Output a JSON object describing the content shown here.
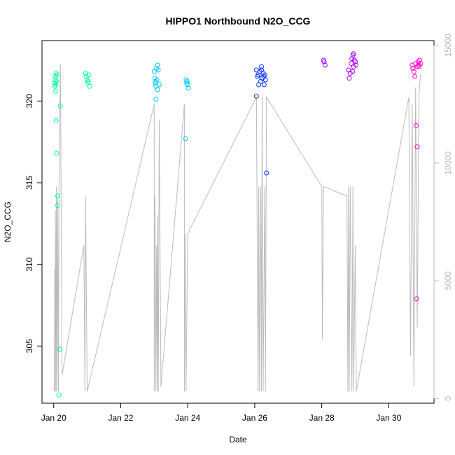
{
  "chart_data": {
    "type": "scatter",
    "title": "HIPPO1 Northbound N2O_CCG",
    "xlabel": "Date",
    "ylabel": "N2O_CCG",
    "x_unit": "day of January (x = 20 means Jan 20 00:00)",
    "xlim": [
      19.65,
      31.35
    ],
    "ylim": [
      301.5,
      323.7
    ],
    "y2lim": [
      -200,
      15200
    ],
    "x_ticks": [
      {
        "value": 20,
        "label": "Jan 20"
      },
      {
        "value": 22,
        "label": "Jan 22"
      },
      {
        "value": 24,
        "label": "Jan 24"
      },
      {
        "value": 26,
        "label": "Jan 26"
      },
      {
        "value": 28,
        "label": "Jan 28"
      },
      {
        "value": 30,
        "label": "Jan 30"
      }
    ],
    "y_ticks": [
      {
        "value": 305,
        "label": "305"
      },
      {
        "value": 310,
        "label": "310"
      },
      {
        "value": 315,
        "label": "315"
      },
      {
        "value": 320,
        "label": "320"
      }
    ],
    "y2_ticks": [
      {
        "value": 0,
        "label": "0"
      },
      {
        "value": 5000,
        "label": "5000"
      },
      {
        "value": 10000,
        "label": "10000"
      },
      {
        "value": 15000,
        "label": "15000"
      }
    ],
    "grid": false,
    "legend": "none",
    "series": [
      {
        "color": "#00ff99",
        "points": [
          [
            20.03,
            321.1
          ],
          [
            20.05,
            321.5
          ],
          [
            20.07,
            321.7
          ],
          [
            20.04,
            321.3
          ],
          [
            20.06,
            321.0
          ],
          [
            20.08,
            321.2
          ],
          [
            20.03,
            320.9
          ],
          [
            20.1,
            321.6
          ],
          [
            20.06,
            320.6
          ],
          [
            20.07,
            318.8
          ],
          [
            20.09,
            316.8
          ],
          [
            20.12,
            314.2
          ],
          [
            20.11,
            313.6
          ],
          [
            20.2,
            319.7
          ],
          [
            20.18,
            304.8
          ],
          [
            20.15,
            302.0
          ],
          [
            20.95,
            321.7
          ],
          [
            20.97,
            321.5
          ],
          [
            21.0,
            321.3
          ],
          [
            21.02,
            321.1
          ],
          [
            21.05,
            321.6
          ],
          [
            21.03,
            321.2
          ],
          [
            21.07,
            320.9
          ]
        ]
      },
      {
        "color": "#00c8ff",
        "points": [
          [
            23.0,
            321.8
          ],
          [
            23.02,
            321.4
          ],
          [
            23.04,
            321.1
          ],
          [
            23.05,
            320.9
          ],
          [
            23.07,
            322.0
          ],
          [
            23.1,
            322.2
          ],
          [
            23.12,
            321.9
          ],
          [
            23.08,
            321.3
          ],
          [
            23.03,
            321.2
          ],
          [
            23.15,
            321.0
          ],
          [
            23.05,
            320.1
          ],
          [
            23.1,
            320.7
          ],
          [
            23.95,
            321.3
          ],
          [
            23.97,
            321.1
          ],
          [
            24.0,
            321.0
          ],
          [
            23.98,
            321.2
          ],
          [
            24.02,
            320.8
          ],
          [
            23.93,
            317.7
          ]
        ]
      },
      {
        "color": "#0033ff",
        "points": [
          [
            26.05,
            321.9
          ],
          [
            26.1,
            321.6
          ],
          [
            26.15,
            321.8
          ],
          [
            26.2,
            322.1
          ],
          [
            26.22,
            321.4
          ],
          [
            26.25,
            321.7
          ],
          [
            26.18,
            321.2
          ],
          [
            26.12,
            321.0
          ],
          [
            26.08,
            321.5
          ],
          [
            26.3,
            321.6
          ],
          [
            26.32,
            321.3
          ],
          [
            26.28,
            321.0
          ],
          [
            26.05,
            320.3
          ],
          [
            26.35,
            315.6
          ],
          [
            26.2,
            321.9
          ],
          [
            26.27,
            321.5
          ]
        ]
      },
      {
        "color": "#aa00ff",
        "points": [
          [
            28.05,
            322.5
          ],
          [
            28.07,
            322.4
          ],
          [
            28.1,
            322.2
          ],
          [
            28.8,
            321.9
          ],
          [
            28.85,
            321.7
          ],
          [
            28.88,
            322.3
          ],
          [
            28.9,
            322.6
          ],
          [
            28.93,
            322.8
          ],
          [
            28.95,
            322.1
          ],
          [
            28.92,
            321.8
          ],
          [
            28.97,
            322.5
          ],
          [
            29.0,
            322.4
          ],
          [
            28.82,
            321.4
          ],
          [
            28.95,
            322.9
          ],
          [
            29.02,
            322.2
          ]
        ]
      },
      {
        "color": "#ff00cc",
        "points": [
          [
            30.7,
            322.2
          ],
          [
            30.72,
            322.0
          ],
          [
            30.75,
            321.8
          ],
          [
            30.8,
            322.3
          ],
          [
            30.85,
            322.1
          ],
          [
            30.88,
            322.4
          ],
          [
            30.9,
            322.2
          ],
          [
            30.92,
            322.5
          ],
          [
            30.95,
            322.3
          ],
          [
            30.78,
            321.5
          ],
          [
            30.82,
            318.5
          ],
          [
            30.85,
            317.2
          ],
          [
            30.83,
            307.9
          ],
          [
            30.9,
            322.1
          ]
        ]
      }
    ],
    "altitude_line": {
      "color": "#bbbbbb",
      "points": [
        [
          20.02,
          300
        ],
        [
          20.03,
          5500
        ],
        [
          20.04,
          300
        ],
        [
          20.05,
          8000
        ],
        [
          20.07,
          300
        ],
        [
          20.08,
          9000
        ],
        [
          20.1,
          300
        ],
        [
          20.12,
          8500
        ],
        [
          20.14,
          300
        ],
        [
          20.16,
          9500
        ],
        [
          20.2,
          14200
        ],
        [
          20.25,
          1000
        ],
        [
          20.9,
          6500
        ],
        [
          20.93,
          300
        ],
        [
          20.95,
          8600
        ],
        [
          21.0,
          300
        ],
        [
          23.0,
          12500
        ],
        [
          23.0,
          300
        ],
        [
          23.02,
          8600
        ],
        [
          23.05,
          300
        ],
        [
          23.07,
          6500
        ],
        [
          23.09,
          300
        ],
        [
          23.1,
          7800
        ],
        [
          23.12,
          300
        ],
        [
          23.15,
          11800
        ],
        [
          23.2,
          500
        ],
        [
          23.9,
          12500
        ],
        [
          23.9,
          300
        ],
        [
          23.92,
          7000
        ],
        [
          23.95,
          300
        ],
        [
          24.0,
          7000
        ],
        [
          26.05,
          12800
        ],
        [
          26.1,
          300
        ],
        [
          26.12,
          9000
        ],
        [
          26.14,
          300
        ],
        [
          26.18,
          9000
        ],
        [
          26.2,
          300
        ],
        [
          26.22,
          12800
        ],
        [
          26.25,
          300
        ],
        [
          26.3,
          9000
        ],
        [
          26.32,
          300
        ],
        [
          26.35,
          12800
        ],
        [
          28.0,
          9000
        ],
        [
          28.02,
          2500
        ],
        [
          28.05,
          9000
        ],
        [
          28.75,
          8600
        ],
        [
          28.78,
          300
        ],
        [
          28.8,
          9000
        ],
        [
          28.82,
          300
        ],
        [
          28.85,
          9000
        ],
        [
          28.9,
          300
        ],
        [
          28.93,
          9000
        ],
        [
          28.95,
          300
        ],
        [
          29.0,
          6500
        ],
        [
          29.03,
          300
        ],
        [
          30.6,
          12800
        ],
        [
          30.65,
          1800
        ],
        [
          30.7,
          12500
        ],
        [
          30.75,
          500
        ],
        [
          30.8,
          13200
        ],
        [
          30.85,
          3000
        ],
        [
          30.9,
          12900
        ],
        [
          30.95,
          13800
        ]
      ]
    }
  }
}
